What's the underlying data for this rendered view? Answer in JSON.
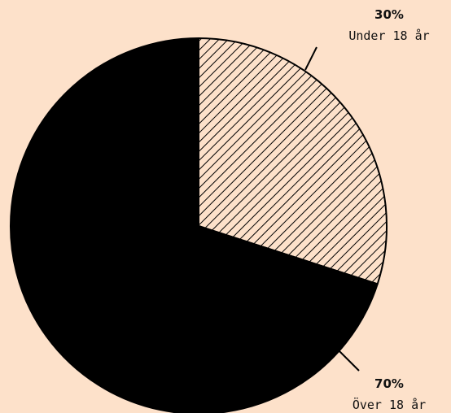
{
  "chart_data": {
    "type": "pie",
    "categories": [
      "Under 18 år",
      "Över 18 år"
    ],
    "values": [
      30,
      70
    ],
    "value_labels": [
      "30%",
      "70%"
    ],
    "colors": [
      "#fde1ca",
      "#000000"
    ],
    "patterns": [
      "hatch",
      "solid"
    ]
  }
}
